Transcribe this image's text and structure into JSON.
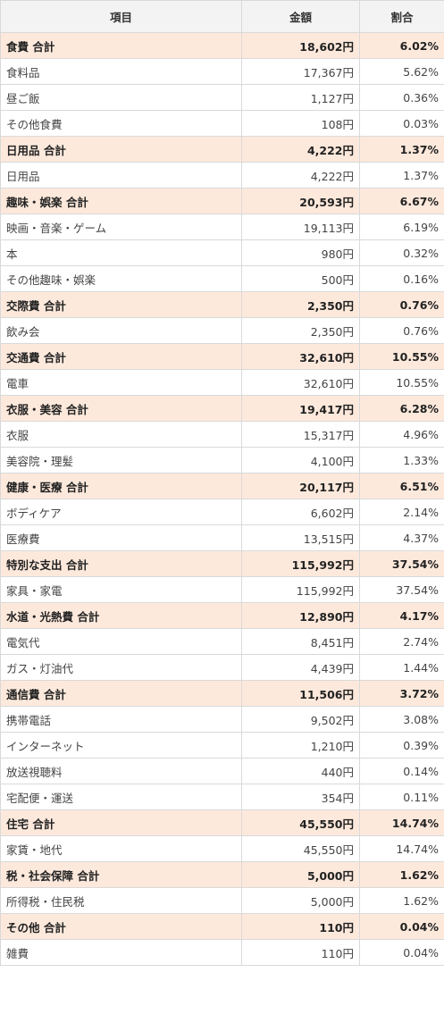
{
  "headers": {
    "item": "項目",
    "amount": "金額",
    "ratio": "割合"
  },
  "rows": [
    {
      "type": "cat",
      "label": "食費 合計",
      "amount": "18,602円",
      "ratio": "6.02%"
    },
    {
      "type": "item",
      "label": "食料品",
      "amount": "17,367円",
      "ratio": "5.62%"
    },
    {
      "type": "item",
      "label": "昼ご飯",
      "amount": "1,127円",
      "ratio": "0.36%"
    },
    {
      "type": "item",
      "label": "その他食費",
      "amount": "108円",
      "ratio": "0.03%"
    },
    {
      "type": "cat",
      "label": "日用品 合計",
      "amount": "4,222円",
      "ratio": "1.37%"
    },
    {
      "type": "item",
      "label": "日用品",
      "amount": "4,222円",
      "ratio": "1.37%"
    },
    {
      "type": "cat",
      "label": "趣味・娯楽 合計",
      "amount": "20,593円",
      "ratio": "6.67%"
    },
    {
      "type": "item",
      "label": "映画・音楽・ゲーム",
      "amount": "19,113円",
      "ratio": "6.19%"
    },
    {
      "type": "item",
      "label": "本",
      "amount": "980円",
      "ratio": "0.32%"
    },
    {
      "type": "item",
      "label": "その他趣味・娯楽",
      "amount": "500円",
      "ratio": "0.16%"
    },
    {
      "type": "cat",
      "label": "交際費 合計",
      "amount": "2,350円",
      "ratio": "0.76%"
    },
    {
      "type": "item",
      "label": "飲み会",
      "amount": "2,350円",
      "ratio": "0.76%"
    },
    {
      "type": "cat",
      "label": "交通費 合計",
      "amount": "32,610円",
      "ratio": "10.55%"
    },
    {
      "type": "item",
      "label": "電車",
      "amount": "32,610円",
      "ratio": "10.55%"
    },
    {
      "type": "cat",
      "label": "衣服・美容 合計",
      "amount": "19,417円",
      "ratio": "6.28%"
    },
    {
      "type": "item",
      "label": "衣服",
      "amount": "15,317円",
      "ratio": "4.96%"
    },
    {
      "type": "item",
      "label": "美容院・理髪",
      "amount": "4,100円",
      "ratio": "1.33%"
    },
    {
      "type": "cat",
      "label": "健康・医療 合計",
      "amount": "20,117円",
      "ratio": "6.51%"
    },
    {
      "type": "item",
      "label": "ボディケア",
      "amount": "6,602円",
      "ratio": "2.14%"
    },
    {
      "type": "item",
      "label": "医療費",
      "amount": "13,515円",
      "ratio": "4.37%"
    },
    {
      "type": "cat",
      "label": "特別な支出 合計",
      "amount": "115,992円",
      "ratio": "37.54%"
    },
    {
      "type": "item",
      "label": "家具・家電",
      "amount": "115,992円",
      "ratio": "37.54%"
    },
    {
      "type": "cat",
      "label": "水道・光熱費 合計",
      "amount": "12,890円",
      "ratio": "4.17%"
    },
    {
      "type": "item",
      "label": "電気代",
      "amount": "8,451円",
      "ratio": "2.74%"
    },
    {
      "type": "item",
      "label": "ガス・灯油代",
      "amount": "4,439円",
      "ratio": "1.44%"
    },
    {
      "type": "cat",
      "label": "通信費 合計",
      "amount": "11,506円",
      "ratio": "3.72%"
    },
    {
      "type": "item",
      "label": "携帯電話",
      "amount": "9,502円",
      "ratio": "3.08%"
    },
    {
      "type": "item",
      "label": "インターネット",
      "amount": "1,210円",
      "ratio": "0.39%"
    },
    {
      "type": "item",
      "label": "放送視聴料",
      "amount": "440円",
      "ratio": "0.14%"
    },
    {
      "type": "item",
      "label": "宅配便・運送",
      "amount": "354円",
      "ratio": "0.11%"
    },
    {
      "type": "cat",
      "label": "住宅 合計",
      "amount": "45,550円",
      "ratio": "14.74%"
    },
    {
      "type": "item",
      "label": "家賃・地代",
      "amount": "45,550円",
      "ratio": "14.74%"
    },
    {
      "type": "cat",
      "label": "税・社会保障 合計",
      "amount": "5,000円",
      "ratio": "1.62%"
    },
    {
      "type": "item",
      "label": "所得税・住民税",
      "amount": "5,000円",
      "ratio": "1.62%"
    },
    {
      "type": "cat",
      "label": "その他 合計",
      "amount": "110円",
      "ratio": "0.04%"
    },
    {
      "type": "item",
      "label": "雑費",
      "amount": "110円",
      "ratio": "0.04%"
    }
  ]
}
